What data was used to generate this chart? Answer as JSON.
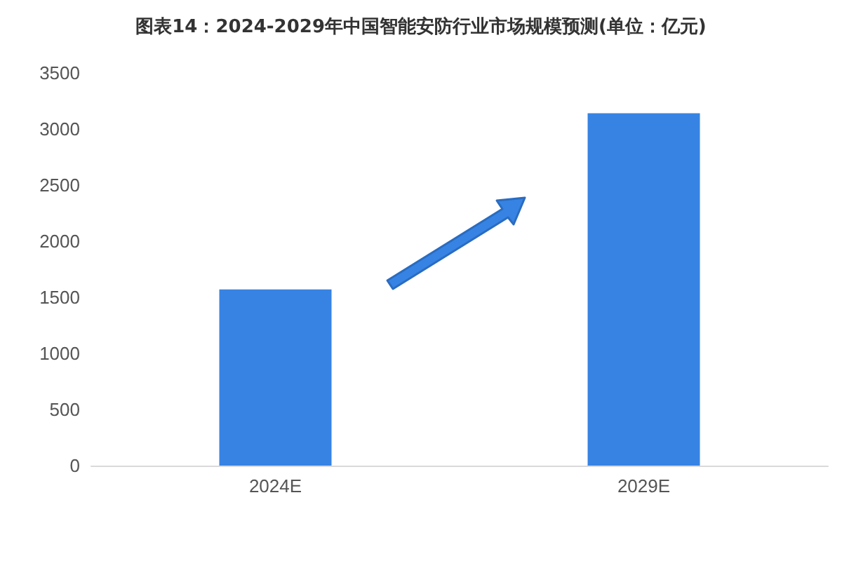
{
  "chart_data": {
    "type": "bar",
    "title": "图表14：2024-2029年中国智能安防行业市场规模预测(单位：亿元)",
    "categories": [
      "2024E",
      "2029E"
    ],
    "values": [
      1570,
      3140
    ],
    "color": "#3683e4",
    "ylim": [
      0,
      3500
    ],
    "yticks": [
      0,
      500,
      1000,
      1500,
      2000,
      2500,
      3000,
      3500
    ],
    "grid": false
  }
}
